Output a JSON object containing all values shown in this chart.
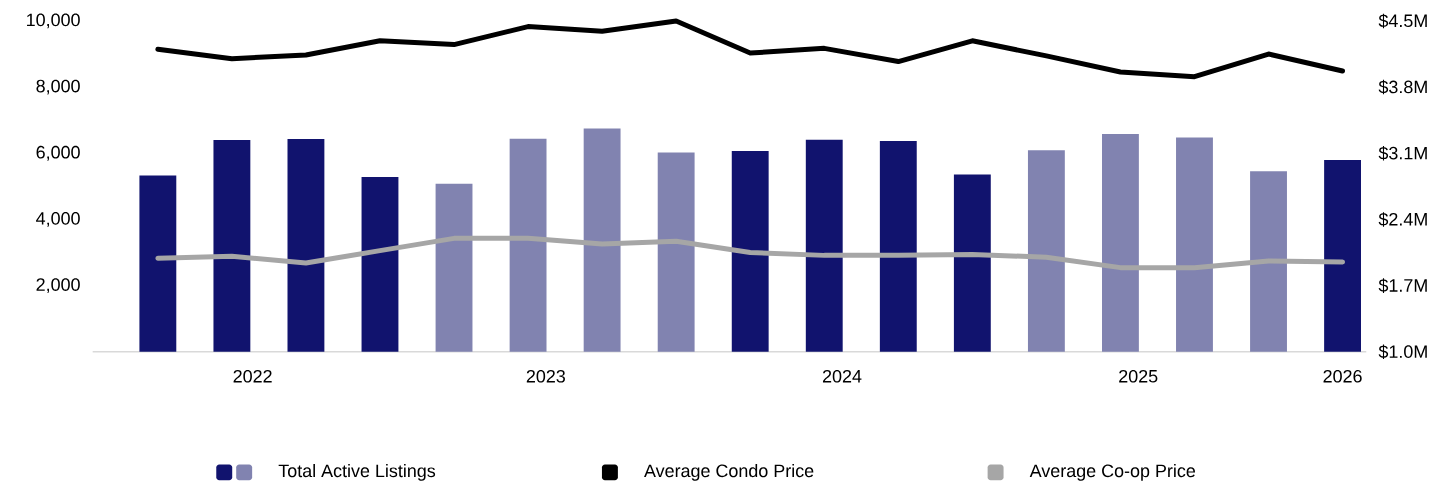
{
  "chart_data": {
    "type": "bar",
    "x": [
      2022,
      2022.25,
      2022.5,
      2022.75,
      2023,
      2023.25,
      2023.5,
      2023.75,
      2024,
      2024.25,
      2024.5,
      2024.75,
      2025,
      2025.25,
      2025.5,
      2025.75,
      2026
    ],
    "xlim": [
      2021.78,
      2026.08
    ],
    "xticks": [
      {
        "value": 2022.32,
        "label": "2022"
      },
      {
        "value": 2023.31,
        "label": "2023"
      },
      {
        "value": 2024.31,
        "label": "2024"
      },
      {
        "value": 2025.31,
        "label": "2025"
      },
      2026
    ],
    "ylim": [
      0,
      10000
    ],
    "yticks": [
      {
        "value": 2000,
        "label": "2,000"
      },
      {
        "value": 4000,
        "label": "4,000"
      },
      {
        "value": 6000,
        "label": "6,000"
      },
      {
        "value": 8000,
        "label": "8,000"
      },
      {
        "value": 10000,
        "label": "10,000"
      }
    ],
    "y2lim": [
      1.0,
      4.5
    ],
    "y2ticks": [
      {
        "value": 1.0,
        "label": "$1.0M"
      },
      {
        "value": 1.7,
        "label": "$1.7M"
      },
      {
        "value": 2.4,
        "label": "$2.4M"
      },
      {
        "value": 3.1,
        "label": "$3.1M"
      },
      {
        "value": 3.8,
        "label": "$3.8M"
      },
      {
        "value": 4.5,
        "label": "$4.5M"
      }
    ],
    "series": [
      {
        "name": "Total Active Listings",
        "colors": [
          "#11136e",
          "#11136e",
          "#11136e",
          "#11136e",
          "#8183b0",
          "#8183b0",
          "#8183b0",
          "#8183b0",
          "#11136e",
          "#11136e",
          "#11136e",
          "#11136e",
          "#8183b0",
          "#8183b0",
          "#8183b0",
          "#8183b0",
          "#11136e"
        ],
        "values": [
          5330,
          6400,
          6430,
          5280,
          5080,
          6440,
          6750,
          6020,
          6070,
          6410,
          6370,
          5360,
          6090,
          6580,
          6480,
          5460,
          5800
        ]
      },
      {
        "name": "Average Condo Price",
        "type": "line",
        "axis": "y2",
        "color": "#000000",
        "values": [
          4.2,
          4.1,
          4.14,
          4.29,
          4.25,
          4.44,
          4.39,
          4.5,
          4.16,
          4.21,
          4.07,
          4.29,
          4.13,
          3.96,
          3.91,
          4.15,
          3.97
        ]
      },
      {
        "name": "Average Co-op Price",
        "type": "line",
        "axis": "y2",
        "color": "#a6a6a6",
        "values": [
          1.99,
          2.01,
          1.94,
          2.07,
          2.2,
          2.2,
          2.14,
          2.17,
          2.05,
          2.02,
          2.02,
          2.03,
          2.0,
          1.89,
          1.89,
          1.96,
          1.95
        ]
      }
    ],
    "legend": "bottom",
    "grid": false
  }
}
